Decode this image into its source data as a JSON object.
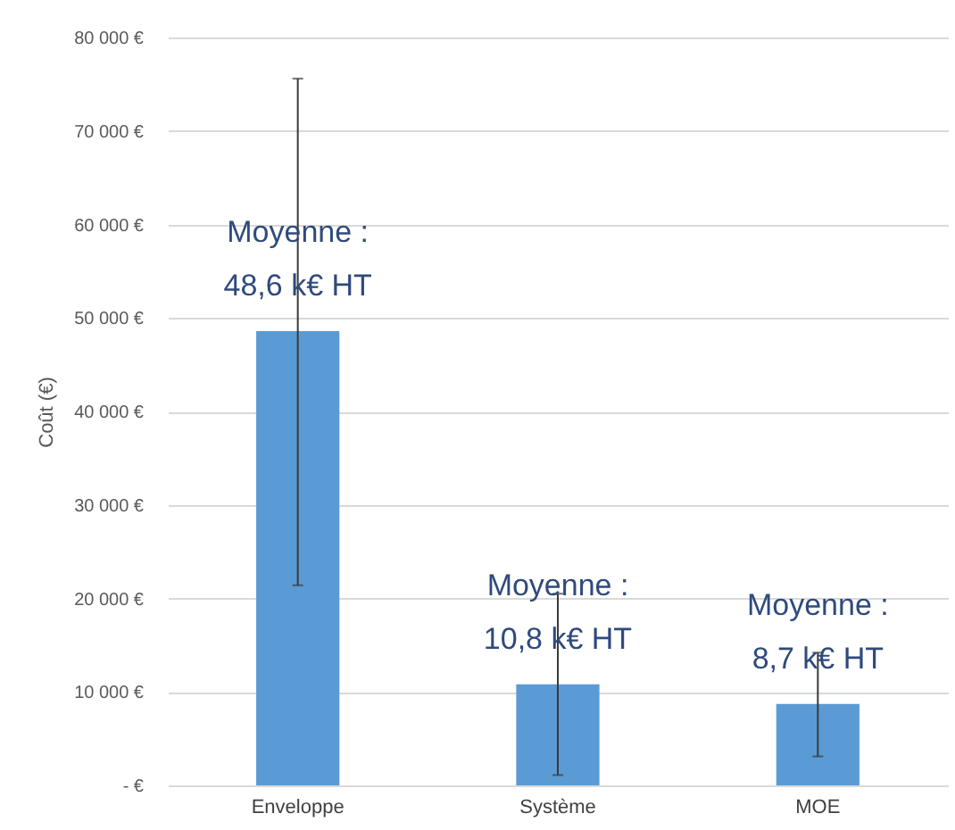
{
  "chart_data": {
    "type": "bar",
    "ylabel": "Coût (€)",
    "categories": [
      "Enveloppe",
      "Système",
      "MOE"
    ],
    "values": [
      48600,
      10800,
      8700
    ],
    "errors": [
      [
        21400,
        75600
      ],
      [
        1100,
        20500
      ],
      [
        3100,
        14200
      ]
    ],
    "color": "#5b9bd5",
    "ylim": [
      0,
      80000
    ],
    "yticks": [
      {
        "value": 0,
        "label": "-   €"
      },
      {
        "value": 10000,
        "label": "10 000 €"
      },
      {
        "value": 20000,
        "label": "20 000 €"
      },
      {
        "value": 30000,
        "label": "30 000 €"
      },
      {
        "value": 40000,
        "label": "40 000 €"
      },
      {
        "value": 50000,
        "label": "50 000 €"
      },
      {
        "value": 60000,
        "label": "60 000 €"
      },
      {
        "value": 70000,
        "label": "70 000 €"
      },
      {
        "value": 80000,
        "label": "80 000 €"
      }
    ],
    "grid": "y",
    "annotations": [
      "Moyenne :\n48,6 k€ HT",
      "Moyenne :\n10,8 k€ HT",
      "Moyenne :\n8,7 k€ HT"
    ]
  }
}
